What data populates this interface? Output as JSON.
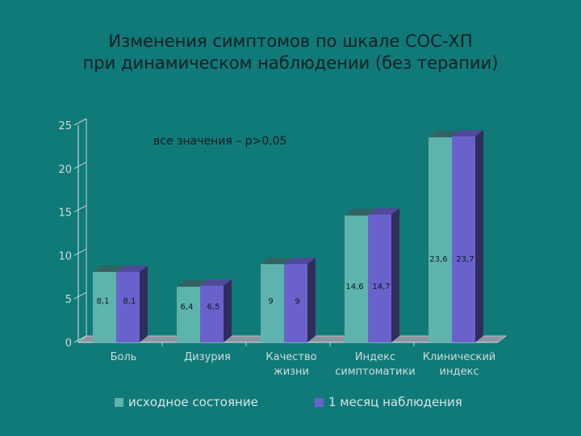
{
  "title": {
    "line1": "Изменения симптомов по шкале СОС-ХП",
    "line2": "при динамическом наблюдении (без терапии)"
  },
  "chart_data": {
    "type": "bar",
    "annotation": "все значения – p>0,05",
    "ylim": [
      0,
      25
    ],
    "yticks": [
      "0",
      "5",
      "10",
      "15",
      "20",
      "25"
    ],
    "categories": [
      [
        "Боль"
      ],
      [
        "Дизурия"
      ],
      [
        "Качество",
        "жизни"
      ],
      [
        "Индекс",
        "симптоматики"
      ],
      [
        "Клинический",
        "индекс"
      ]
    ],
    "series": [
      {
        "name": "исходное состояние",
        "values": [
          8.1,
          6.4,
          9,
          14.6,
          23.6
        ],
        "labels": [
          "8,1",
          "6,4",
          "9",
          "14,6",
          "23,6"
        ],
        "color": "#5fb3ae"
      },
      {
        "name": "1 месяц наблюдения",
        "values": [
          8.1,
          6.5,
          9,
          14.7,
          23.7
        ],
        "labels": [
          "8,1",
          "6,5",
          "9",
          "14,7",
          "23,7"
        ],
        "color": "#6a62cc"
      }
    ],
    "grid": false,
    "legend_position": "bottom"
  }
}
